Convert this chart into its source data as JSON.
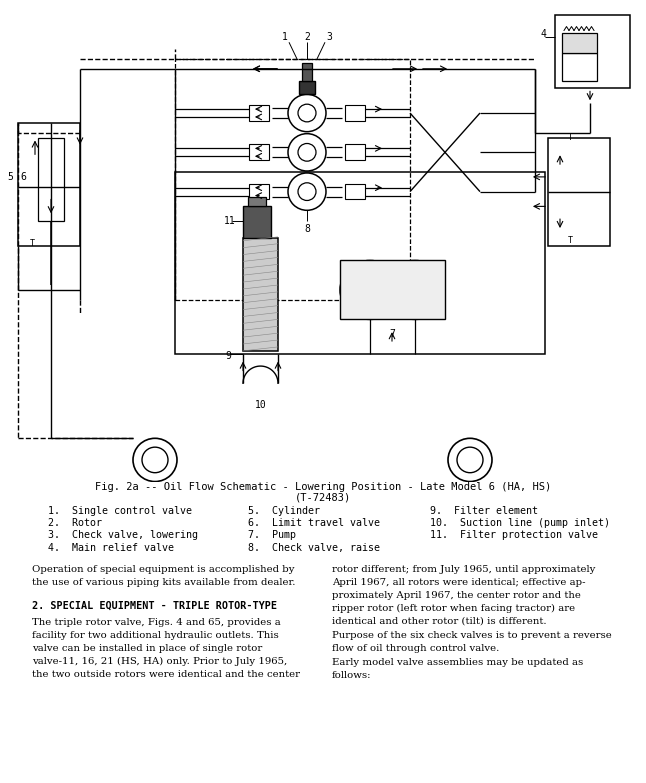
{
  "figure_caption_line1": "Fig. 2a -- Oil Flow Schematic - Lowering Position - Late Model 6 (HA, HS)",
  "figure_caption_line2": "(T-72483)",
  "legend_items": [
    [
      "1.  Single control valve",
      "5.  Cylinder",
      "9.  Filter element"
    ],
    [
      "2.  Rotor",
      "6.  Limit travel valve",
      "10.  Suction line (pump inlet)"
    ],
    [
      "3.  Check valve, lowering",
      "7.  Pump",
      "11.  Filter protection valve"
    ],
    [
      "4.  Main relief valve",
      "8.  Check valve, raise",
      ""
    ]
  ],
  "body_left_col": [
    "Operation of special equipment is accomplished by\nthe use of various piping kits available from dealer.",
    "2. SPECIAL EQUIPMENT - TRIPLE ROTOR-TYPE",
    "The triple rotor valve, Figs. 4 and 65, provides a\nfacility for two additional hydraulic outlets. This\nvalve can be installed in place of single rotor\nvalve-11, 16, 21 (HS, HA) only. Prior to July 1965,\nthe two outside rotors were identical and the center"
  ],
  "body_right_col": [
    "rotor different; from July 1965, until approximately\nApril 1967, all rotors were identical; effective ap-\nproximately April 1967, the center rotor and the\nripper rotor (left rotor when facing tractor) are\nidentical and other rotor (tilt) is different.",
    "Purpose of the six check valves is to prevent a reverse\nflow of oil through control valve.",
    "Early model valve assemblies may be updated as\nfollows:"
  ],
  "bg_color": "#ffffff",
  "text_color": "#000000"
}
